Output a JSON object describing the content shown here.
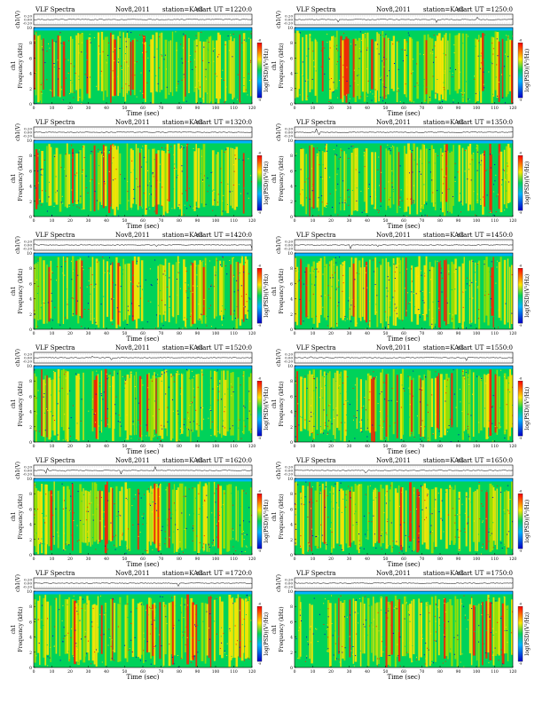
{
  "figure": {
    "panel_title": "VLF Spectra",
    "date": "Nov8,2011",
    "station": "station=KAG",
    "start_prefix": "start UT =",
    "channel_label": "ch1(V)",
    "channel_ticks": [
      "0.20",
      "0.00",
      "-0.20"
    ],
    "freq_channel_label": "ch1",
    "y_label": "Frequency (kHz)",
    "x_label": "Time (sec)",
    "x_ticks": [
      "0",
      "10",
      "20",
      "30",
      "40",
      "50",
      "60",
      "70",
      "80",
      "90",
      "100",
      "110",
      "120"
    ],
    "y_ticks": [
      "0",
      "2",
      "4",
      "6",
      "8",
      "10"
    ],
    "colorbar_label": "log(PSD)(V²/Hz)",
    "colorbar_ticks": [
      "-6",
      "-9"
    ]
  },
  "colors": {
    "background_band": "#00b4ff",
    "base": "#00d25a",
    "mid": "#a0e000",
    "high": "#ffe600",
    "peak": "#ff1e00",
    "colorbar_top": "#ff0000",
    "colorbar_bottom": "#0000c8"
  },
  "chart_data": [
    {
      "type": "heatmap",
      "start_time": "1220:0",
      "x_range": [
        0,
        120
      ],
      "y_range": [
        0,
        10
      ],
      "xlabel": "Time (sec)",
      "ylabel": "Frequency (kHz)"
    },
    {
      "type": "heatmap",
      "start_time": "1250:0",
      "x_range": [
        0,
        120
      ],
      "y_range": [
        0,
        10
      ],
      "xlabel": "Time (sec)",
      "ylabel": "Frequency (kHz)"
    },
    {
      "type": "heatmap",
      "start_time": "1320:0",
      "x_range": [
        0,
        120
      ],
      "y_range": [
        0,
        10
      ],
      "xlabel": "Time (sec)",
      "ylabel": "Frequency (kHz)"
    },
    {
      "type": "heatmap",
      "start_time": "1350:0",
      "x_range": [
        0,
        120
      ],
      "y_range": [
        0,
        10
      ],
      "xlabel": "Time (sec)",
      "ylabel": "Frequency (kHz)"
    },
    {
      "type": "heatmap",
      "start_time": "1420:0",
      "x_range": [
        0,
        120
      ],
      "y_range": [
        0,
        10
      ],
      "xlabel": "Time (sec)",
      "ylabel": "Frequency (kHz)"
    },
    {
      "type": "heatmap",
      "start_time": "1450:0",
      "x_range": [
        0,
        120
      ],
      "y_range": [
        0,
        10
      ],
      "xlabel": "Time (sec)",
      "ylabel": "Frequency (kHz)"
    },
    {
      "type": "heatmap",
      "start_time": "1520:0",
      "x_range": [
        0,
        120
      ],
      "y_range": [
        0,
        10
      ],
      "xlabel": "Time (sec)",
      "ylabel": "Frequency (kHz)"
    },
    {
      "type": "heatmap",
      "start_time": "1550:0",
      "x_range": [
        0,
        120
      ],
      "y_range": [
        0,
        10
      ],
      "xlabel": "Time (sec)",
      "ylabel": "Frequency (kHz)"
    },
    {
      "type": "heatmap",
      "start_time": "1620:0",
      "x_range": [
        0,
        120
      ],
      "y_range": [
        0,
        10
      ],
      "xlabel": "Time (sec)",
      "ylabel": "Frequency (kHz)"
    },
    {
      "type": "heatmap",
      "start_time": "1650:0",
      "x_range": [
        0,
        120
      ],
      "y_range": [
        0,
        10
      ],
      "xlabel": "Time (sec)",
      "ylabel": "Frequency (kHz)"
    },
    {
      "type": "heatmap",
      "start_time": "1720:0",
      "x_range": [
        0,
        120
      ],
      "y_range": [
        0,
        10
      ],
      "xlabel": "Time (sec)",
      "ylabel": "Frequency (kHz)"
    },
    {
      "type": "heatmap",
      "start_time": "1750:0",
      "x_range": [
        0,
        120
      ],
      "y_range": [
        0,
        10
      ],
      "xlabel": "Time (sec)",
      "ylabel": "Frequency (kHz)"
    }
  ]
}
